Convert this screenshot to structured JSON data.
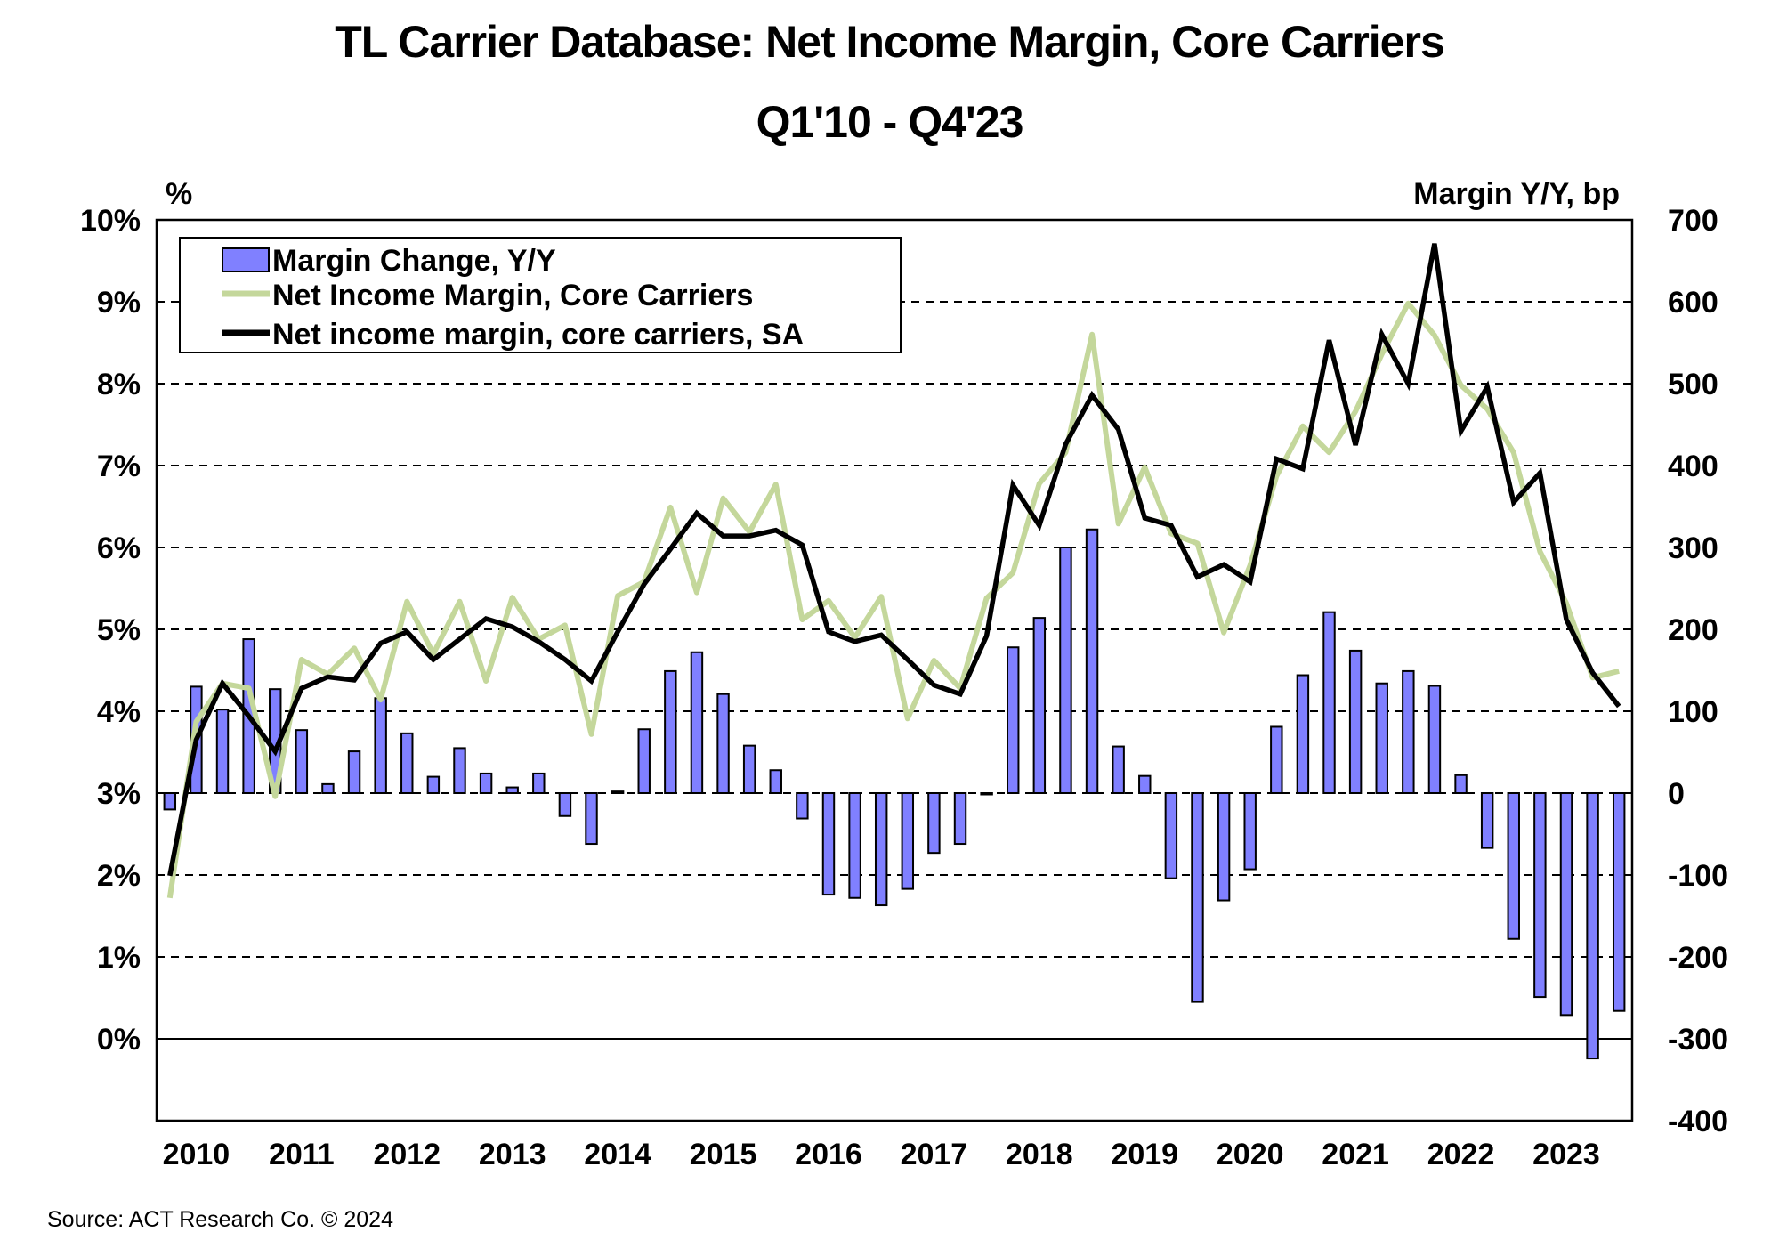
{
  "header": {
    "title": "TL Carrier Database: Net Income Margin, Core Carriers",
    "subtitle": "Q1'10 - Q4'23"
  },
  "source": "Source:  ACT Research  Co. © 2024",
  "colors": {
    "bars": "#8080ff",
    "bar_outline": "#000000",
    "nim": "#c4d79b",
    "nim_sa": "#000000"
  },
  "chart_data": {
    "type": "bar+line",
    "title": "TL Carrier Database: Net Income Margin, Core Carriers",
    "subtitle": "Q1'10 - Q4'23",
    "ylabel_left": "%",
    "ylabel_right": "Margin Y/Y, bp",
    "ylim_left": [
      -1,
      10
    ],
    "ylim_right": [
      -400,
      700
    ],
    "yticks_left": [
      "0%",
      "1%",
      "2%",
      "3%",
      "4%",
      "5%",
      "6%",
      "7%",
      "8%",
      "9%",
      "10%"
    ],
    "yticks_left_values": [
      0,
      1,
      2,
      3,
      4,
      5,
      6,
      7,
      8,
      9,
      10
    ],
    "yticks_right": [
      "-400",
      "-300",
      "-200",
      "-100",
      "0",
      "100",
      "200",
      "300",
      "400",
      "500",
      "600",
      "700"
    ],
    "yticks_right_values": [
      -400,
      -300,
      -200,
      -100,
      0,
      100,
      200,
      300,
      400,
      500,
      600,
      700
    ],
    "xtick_labels": [
      "2010",
      "2011",
      "2012",
      "2013",
      "2014",
      "2015",
      "2016",
      "2017",
      "2018",
      "2019",
      "2020",
      "2021",
      "2022",
      "2023"
    ],
    "grid": "horizontal dashed",
    "legend_position": "top-left",
    "x": [
      "Q1'10",
      "Q2'10",
      "Q3'10",
      "Q4'10",
      "Q1'11",
      "Q2'11",
      "Q3'11",
      "Q4'11",
      "Q1'12",
      "Q2'12",
      "Q3'12",
      "Q4'12",
      "Q1'13",
      "Q2'13",
      "Q3'13",
      "Q4'13",
      "Q1'14",
      "Q2'14",
      "Q3'14",
      "Q4'14",
      "Q1'15",
      "Q2'15",
      "Q3'15",
      "Q4'15",
      "Q1'16",
      "Q2'16",
      "Q3'16",
      "Q4'16",
      "Q1'17",
      "Q2'17",
      "Q3'17",
      "Q4'17",
      "Q1'18",
      "Q2'18",
      "Q3'18",
      "Q4'18",
      "Q1'19",
      "Q2'19",
      "Q3'19",
      "Q4'19",
      "Q1'20",
      "Q2'20",
      "Q3'20",
      "Q4'20",
      "Q1'21",
      "Q2'21",
      "Q3'21",
      "Q4'21",
      "Q1'22",
      "Q2'22",
      "Q3'22",
      "Q4'22",
      "Q1'23",
      "Q2'23",
      "Q3'23",
      "Q4'23"
    ],
    "series": [
      {
        "name": "Margin Change, Y/Y",
        "type": "bar",
        "axis": "right",
        "unit": "bp",
        "values": [
          -20,
          130,
          102,
          188,
          127,
          77,
          11,
          51,
          116,
          73,
          20,
          55,
          24,
          7,
          24,
          -28,
          -62,
          2,
          78,
          149,
          172,
          121,
          58,
          28,
          -31,
          -124,
          -128,
          -137,
          -117,
          -73,
          -62,
          -1,
          178,
          214,
          300,
          322,
          57,
          21,
          -104,
          -255,
          -131,
          -93,
          81,
          144,
          221,
          174,
          134,
          149,
          131,
          22,
          -67,
          -178,
          -249,
          -271,
          -324,
          -266
        ]
      },
      {
        "name": "Net Income Margin, Core Carriers",
        "type": "line",
        "axis": "left",
        "unit": "%",
        "values": [
          1.72,
          3.87,
          4.34,
          4.28,
          2.96,
          4.63,
          4.45,
          4.77,
          4.14,
          5.34,
          4.7,
          5.34,
          4.37,
          5.39,
          4.88,
          5.05,
          3.72,
          5.41,
          5.58,
          6.49,
          5.45,
          6.6,
          6.19,
          6.77,
          5.12,
          5.35,
          4.9,
          5.4,
          3.91,
          4.62,
          4.28,
          5.38,
          5.69,
          6.78,
          7.16,
          8.6,
          6.29,
          6.98,
          6.17,
          6.05,
          4.96,
          5.78,
          6.87,
          7.48,
          7.16,
          7.66,
          8.36,
          8.98,
          8.59,
          7.98,
          7.69,
          7.16,
          5.95,
          5.32,
          4.41,
          4.49
        ]
      },
      {
        "name": "Net income margin, core carriers, SA",
        "type": "line",
        "axis": "left",
        "unit": "%",
        "values": [
          1.99,
          3.65,
          4.34,
          3.94,
          3.51,
          4.28,
          4.42,
          4.38,
          4.83,
          4.97,
          4.63,
          4.88,
          5.13,
          5.03,
          4.85,
          4.63,
          4.37,
          4.97,
          5.55,
          5.98,
          6.42,
          6.14,
          6.14,
          6.21,
          6.03,
          4.97,
          4.85,
          4.93,
          4.63,
          4.32,
          4.21,
          4.92,
          6.76,
          6.27,
          7.26,
          7.86,
          7.44,
          6.36,
          6.27,
          5.64,
          5.79,
          5.58,
          7.08,
          6.96,
          8.53,
          7.25,
          8.6,
          8.0,
          9.71,
          7.42,
          7.96,
          6.55,
          6.91,
          5.12,
          4.47,
          4.06
        ]
      }
    ]
  }
}
